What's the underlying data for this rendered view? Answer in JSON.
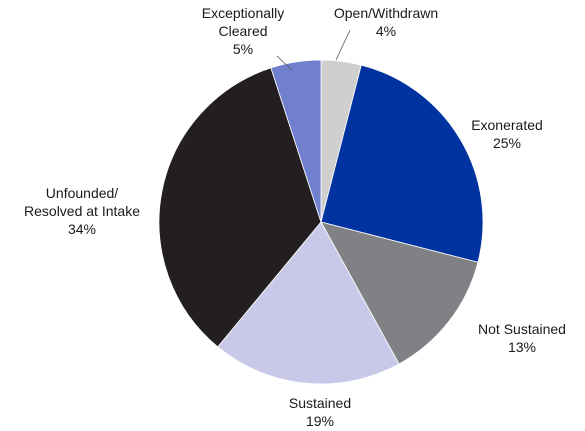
{
  "chart_data": {
    "type": "pie",
    "unit": "%",
    "slices": [
      {
        "name": "Open/Withdrawn",
        "value": 4,
        "color": "#cfcfcf",
        "label_lines": [
          "Open/Withdrawn",
          "4%"
        ]
      },
      {
        "name": "Exonerated",
        "value": 25,
        "color": "#0033a0",
        "label_lines": [
          "Exonerated",
          "25%"
        ]
      },
      {
        "name": "Not Sustained",
        "value": 13,
        "color": "#808185",
        "label_lines": [
          "Not Sustained",
          "13%"
        ]
      },
      {
        "name": "Sustained",
        "value": 19,
        "color": "#c8c8e8",
        "label_lines": [
          "Sustained",
          "19%"
        ]
      },
      {
        "name": "Unfounded/ Resolved at Intake",
        "value": 34,
        "color": "#231f20",
        "label_lines": [
          "Unfounded/",
          "Resolved at Intake",
          "34%"
        ]
      },
      {
        "name": "Exceptionally Cleared",
        "value": 5,
        "color": "#7080cf",
        "label_lines": [
          "Exceptionally",
          "Cleared",
          "5%"
        ]
      }
    ]
  }
}
